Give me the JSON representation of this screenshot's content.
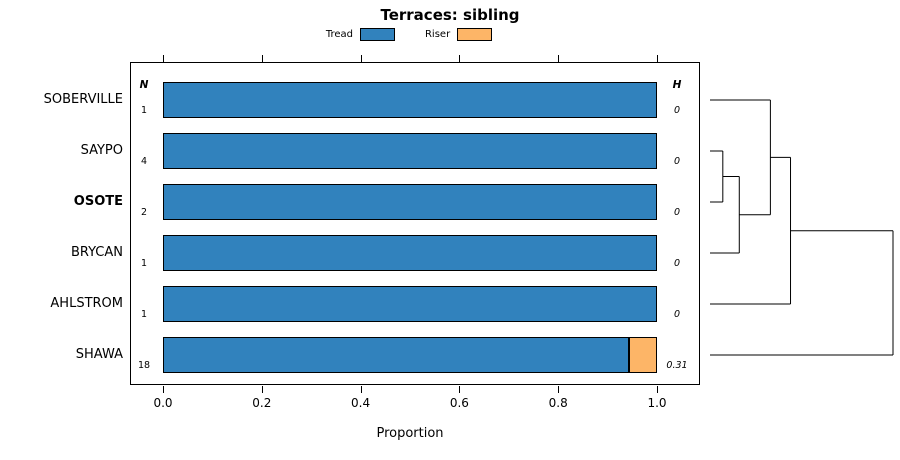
{
  "chart_data": {
    "type": "bar",
    "orientation": "horizontal",
    "stacked": true,
    "title": "Terraces: sibling",
    "xlabel": "Proportion",
    "xlim": [
      0,
      1
    ],
    "xticks": [
      "0.0",
      "0.2",
      "0.4",
      "0.6",
      "0.8",
      "1.0"
    ],
    "grid": false,
    "legend_position": "top",
    "categories": [
      "SOBERVILLE",
      "SAYPO",
      "OSOTE",
      "BRYCAN",
      "AHLSTROM",
      "SHAWA"
    ],
    "bold_category": "OSOTE",
    "series": [
      {
        "name": "Tread",
        "color": "#3182BD",
        "values": [
          1.0,
          1.0,
          1.0,
          1.0,
          1.0,
          0.944
        ]
      },
      {
        "name": "Riser",
        "color": "#FDB567",
        "values": [
          0,
          0,
          0,
          0,
          0,
          0.056
        ]
      }
    ],
    "legend": [
      {
        "label": "Tread",
        "color": "#3182BD"
      },
      {
        "label": "Riser",
        "color": "#FDB567"
      }
    ],
    "columns": {
      "n": {
        "header": "N",
        "values": [
          "1",
          "4",
          "2",
          "1",
          "1",
          "18"
        ]
      },
      "h": {
        "header": "H",
        "values": [
          "0",
          "0",
          "0",
          "0",
          "0",
          "0.31"
        ]
      }
    },
    "dendrogram": {
      "leaves": [
        "SOBERVILLE",
        "SAYPO",
        "OSOTE",
        "BRYCAN",
        "AHLSTROM",
        "SHAWA"
      ],
      "merges": [
        {
          "id": "m0",
          "a": "SAYPO",
          "b": "OSOTE",
          "height": 0.07
        },
        {
          "id": "m1",
          "a": "m0",
          "b": "BRYCAN",
          "height": 0.16
        },
        {
          "id": "m2",
          "a": "SOBERVILLE",
          "b": "m1",
          "height": 0.33
        },
        {
          "id": "m3",
          "a": "m2",
          "b": "AHLSTROM",
          "height": 0.44
        },
        {
          "id": "m4",
          "a": "m3",
          "b": "SHAWA",
          "height": 1.0
        }
      ]
    }
  }
}
